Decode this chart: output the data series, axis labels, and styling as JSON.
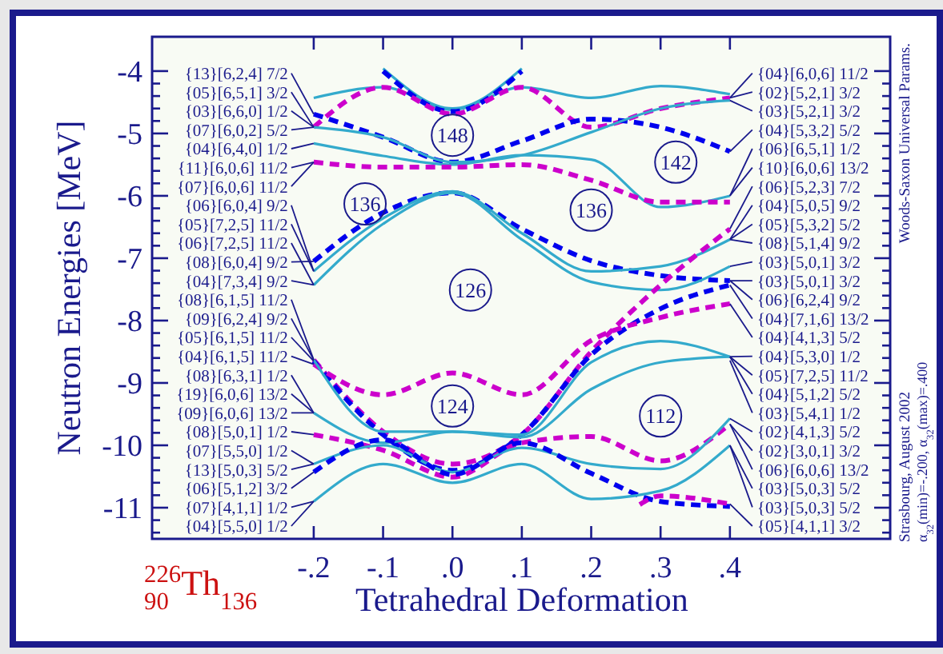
{
  "chart_data": {
    "type": "line",
    "xlabel": "Tetrahedral Deformation",
    "ylabel": "Neutron Energies [MeV]",
    "xlim": [
      -0.433,
      0.631
    ],
    "ylim": [
      -11.5,
      -3.45
    ],
    "xticks": [
      {
        "value": -0.2,
        "label": "-.2"
      },
      {
        "value": -0.1,
        "label": "-.1"
      },
      {
        "value": 0,
        "label": ".0"
      },
      {
        "value": 0.1,
        "label": ".1"
      },
      {
        "value": 0.2,
        "label": ".2"
      },
      {
        "value": 0.3,
        "label": ".3"
      },
      {
        "value": 0.4,
        "label": ".4"
      }
    ],
    "yticks": [
      -4,
      -5,
      -6,
      -7,
      -8,
      -9,
      -10,
      -11,
      {
        "value": -4.2,
        "label": null
      },
      {
        "value": -4.4,
        "label": null
      },
      {
        "value": -4.6,
        "label": null
      },
      {
        "value": -4.8,
        "label": null
      },
      {
        "value": -5.2,
        "label": null
      },
      {
        "value": -5.4,
        "label": null
      },
      {
        "value": -5.6,
        "label": null
      },
      {
        "value": -5.8,
        "label": null
      },
      {
        "value": -6.2,
        "label": null
      },
      {
        "value": -6.4,
        "label": null
      },
      {
        "value": -6.6,
        "label": null
      },
      {
        "value": -6.8,
        "label": null
      },
      {
        "value": -7.2,
        "label": null
      },
      {
        "value": -7.4,
        "label": null
      },
      {
        "value": -7.6,
        "label": null
      },
      {
        "value": -7.8,
        "label": null
      },
      {
        "value": -8.2,
        "label": null
      },
      {
        "value": -8.4,
        "label": null
      },
      {
        "value": -8.6,
        "label": null
      },
      {
        "value": -8.8,
        "label": null
      },
      {
        "value": -9.2,
        "label": null
      },
      {
        "value": -9.4,
        "label": null
      },
      {
        "value": -9.6,
        "label": null
      },
      {
        "value": -9.8,
        "label": null
      },
      {
        "value": -10.2,
        "label": null
      },
      {
        "value": -10.4,
        "label": null
      },
      {
        "value": -10.6,
        "label": null
      },
      {
        "value": -10.8,
        "label": null
      },
      {
        "value": -11.2,
        "label": null
      },
      {
        "value": -11.4,
        "label": null
      }
    ],
    "x": [
      -0.2,
      -0.1,
      0,
      0.1,
      0.2,
      0.3,
      0.4
    ],
    "series": [
      {
        "color": "#33aacc",
        "line_style": "solid",
        "values": [
          -4.43,
          -4.26,
          -4.62,
          -4.26,
          -4.43,
          -4.24,
          -4.37
        ]
      },
      {
        "color": "#33aacc",
        "line_style": "solid",
        "x": [
          -0.1,
          0,
          0.1
        ],
        "values": [
          -3.96,
          -4.6,
          -3.96
        ]
      },
      {
        "color": "#0000ee",
        "line_style": "dashed",
        "x": [
          -0.1,
          0,
          0.1
        ],
        "values": [
          -4.0,
          -4.65,
          -4.0
        ]
      },
      {
        "color": "#cc00cc",
        "line_style": "dashed",
        "values": [
          -4.9,
          -4.26,
          -4.69,
          -4.26,
          -4.9,
          -4.6,
          -4.43
        ]
      },
      {
        "color": "#0000ee",
        "line_style": "dashed",
        "values": [
          -4.69,
          -5.06,
          -5.46,
          -5.12,
          -4.77,
          -4.9,
          -5.29
        ]
      },
      {
        "color": "#33aacc",
        "line_style": "solid",
        "values": [
          -4.9,
          -5.06,
          -5.46,
          -5.35,
          -4.98,
          -4.6,
          -4.47
        ]
      },
      {
        "color": "#33aacc",
        "line_style": "solid",
        "values": [
          -5.16,
          -5.36,
          -5.5,
          -5.35,
          -5.42,
          -6.18,
          -6.0
        ]
      },
      {
        "color": "#cc00cc",
        "line_style": "dashed",
        "values": [
          -5.46,
          -5.54,
          -5.54,
          -5.5,
          -5.75,
          -6.1,
          -6.1
        ]
      },
      {
        "color": "#0000ee",
        "line_style": "dashed",
        "values": [
          -7.05,
          -6.27,
          -5.95,
          -6.53,
          -7.04,
          -7.28,
          -7.36
        ]
      },
      {
        "color": "#33aacc",
        "line_style": "solid",
        "values": [
          -7.21,
          -6.36,
          -5.93,
          -6.6,
          -7.21,
          -7.13,
          -6.7
        ]
      },
      {
        "color": "#33aacc",
        "line_style": "solid",
        "values": [
          -7.43,
          -6.45,
          -5.95,
          -6.7,
          -7.38,
          -7.51,
          -7.13
        ]
      },
      {
        "color": "#cc00cc",
        "line_style": "dashed",
        "values": [
          -8.63,
          -9.78,
          -10.3,
          -9.83,
          -8.5,
          -7.43,
          -6.53
        ]
      },
      {
        "color": "#0000ee",
        "line_style": "dashed",
        "values": [
          -8.65,
          -9.83,
          -10.4,
          -9.83,
          -8.55,
          -7.81,
          -7.43
        ]
      },
      {
        "color": "#cc00cc",
        "line_style": "dashed",
        "values": [
          -8.7,
          -9.19,
          -8.84,
          -9.19,
          -8.32,
          -7.95,
          -7.73
        ]
      },
      {
        "color": "#33aacc",
        "line_style": "solid",
        "values": [
          -8.63,
          -9.78,
          -9.78,
          -9.83,
          -8.67,
          -8.33,
          -8.58
        ]
      },
      {
        "color": "#33aacc",
        "line_style": "solid",
        "values": [
          -9.48,
          -9.96,
          -9.78,
          -9.87,
          -9.1,
          -8.67,
          -8.58
        ]
      },
      {
        "color": "#cc00cc",
        "line_style": "dashed",
        "values": [
          -9.83,
          -10.08,
          -10.51,
          -9.96,
          -9.86,
          -10.25,
          -9.66
        ]
      },
      {
        "color": "#33aacc",
        "line_style": "solid",
        "values": [
          -10.3,
          -10.0,
          -10.43,
          -10.04,
          -10.3,
          -10.38,
          -9.57
        ]
      },
      {
        "color": "#0000ee",
        "line_style": "dashed",
        "values": [
          -10.43,
          -9.91,
          -10.47,
          -9.96,
          -10.45,
          -10.9,
          -10.98
        ]
      },
      {
        "color": "#33aacc",
        "line_style": "solid",
        "values": [
          -10.9,
          -10.3,
          -10.6,
          -10.3,
          -10.86,
          -10.73,
          -10.0
        ]
      },
      {
        "color": "#cc00cc",
        "line_style": "dashed",
        "x": [
          0.27,
          0.3,
          0.4
        ],
        "values": [
          -10.95,
          -10.81,
          -10.94
        ]
      }
    ],
    "annotations": [
      "$^{226}$$_{90}$Th$_{136}$",
      "Woods-Saxon Universal Params.",
      "Strasbourg, August 2002",
      "α$_{32}$(min)=-.200, α$_{32}$(max)=.400",
      {
        "text": "148",
        "x": 0,
        "y": -5.03
      },
      {
        "text": "142",
        "x": 0.322,
        "y": -5.46
      },
      {
        "text": "136",
        "x": -0.126,
        "y": -6.13
      },
      {
        "text": "136",
        "x": 0.2,
        "y": -6.23
      },
      {
        "text": "126",
        "x": 0.026,
        "y": -7.51
      },
      {
        "text": "124",
        "x": 0,
        "y": -9.37
      },
      {
        "text": "112",
        "x": 0.3,
        "y": -9.53
      },
      {
        "text": "{13}[6,2,4] 7/2",
        "x": -0.2,
        "y": -4.69
      },
      {
        "text": "{05}[6,5,1] 3/2",
        "x": -0.2,
        "y": -4.9
      },
      {
        "text": "{03}[6,6,0] 1/2",
        "x": -0.2,
        "y": -4.9
      },
      {
        "text": "{07}[6,0,2] 5/2",
        "x": -0.2,
        "y": -4.9
      },
      {
        "text": "{04}[6,4,0] 1/2",
        "x": -0.2,
        "y": -5.16
      },
      {
        "text": "{11}[6,0,6] 11/2",
        "x": -0.2,
        "y": -5.46
      },
      {
        "text": "{07}[6,0,6] 11/2",
        "x": -0.2,
        "y": -5.46
      },
      {
        "text": "{06}[6,0,4] 9/2",
        "x": -0.2,
        "y": -7.21
      },
      {
        "text": "{05}[7,2,5] 11/2",
        "x": -0.2,
        "y": -7.21
      },
      {
        "text": "{06}[7,2,5] 11/2",
        "x": -0.2,
        "y": -7.43
      },
      {
        "text": "{08}[6,0,4] 9/2",
        "x": -0.2,
        "y": -7.05
      },
      {
        "text": "{04}[7,3,4] 9/2",
        "x": -0.2,
        "y": -7.43
      },
      {
        "text": "{08}[6,1,5] 11/2",
        "x": -0.2,
        "y": -8.63
      },
      {
        "text": "{09}[6,2,4] 9/2",
        "x": -0.2,
        "y": -8.63
      },
      {
        "text": "{05}[6,1,5] 11/2",
        "x": -0.2,
        "y": -8.65
      },
      {
        "text": "{04}[6,1,5] 11/2",
        "x": -0.2,
        "y": -8.7
      },
      {
        "text": "{08}[6,3,1] 1/2",
        "x": -0.2,
        "y": -9.48
      },
      {
        "text": "{19}[6,0,6] 13/2",
        "x": -0.2,
        "y": -9.48
      },
      {
        "text": "{09}[6,0,6] 13/2",
        "x": -0.2,
        "y": -9.48
      },
      {
        "text": "{08}[5,0,1] 1/2",
        "x": -0.2,
        "y": -9.83
      },
      {
        "text": "{07}[5,5,0] 1/2",
        "x": -0.2,
        "y": -10.3
      },
      {
        "text": "{13}[5,0,3] 5/2",
        "x": -0.2,
        "y": -10.3
      },
      {
        "text": "{06}[5,1,2] 3/2",
        "x": -0.2,
        "y": -10.43
      },
      {
        "text": "{07}[4,1,1] 1/2",
        "x": -0.2,
        "y": -10.9
      },
      {
        "text": "{04}[5,5,0] 1/2",
        "x": -0.2,
        "y": -10.9
      },
      {
        "text": "{04}[6,0,6] 11/2",
        "x": 0.4,
        "y": -4.43
      },
      {
        "text": "{02}[5,2,1] 3/2",
        "x": 0.4,
        "y": -4.43
      },
      {
        "text": "{03}[5,2,1] 3/2",
        "x": 0.4,
        "y": -4.47
      },
      {
        "text": "{04}[5,3,2] 5/2",
        "x": 0.4,
        "y": -5.29
      },
      {
        "text": "{06}[6,5,1] 1/2",
        "x": 0.4,
        "y": -6.0
      },
      {
        "text": "{10}[6,0,6] 13/2",
        "x": 0.4,
        "y": -6.0
      },
      {
        "text": "{06}[5,2,3] 7/2",
        "x": 0.4,
        "y": -6.53
      },
      {
        "text": "{04}[5,0,5] 9/2",
        "x": 0.4,
        "y": -6.7
      },
      {
        "text": "{05}[5,3,2] 5/2",
        "x": 0.4,
        "y": -6.7
      },
      {
        "text": "{08}[5,1,4] 9/2",
        "x": 0.4,
        "y": -6.7
      },
      {
        "text": "{03}[5,0,1] 3/2",
        "x": 0.4,
        "y": -7.13
      },
      {
        "text": "{03}[5,0,1] 3/2",
        "x": 0.4,
        "y": -7.36
      },
      {
        "text": "{06}[6,2,4] 9/2",
        "x": 0.4,
        "y": -7.36
      },
      {
        "text": "{04}[7,1,6] 13/2",
        "x": 0.4,
        "y": -7.43
      },
      {
        "text": "{04}[4,1,3] 5/2",
        "x": 0.4,
        "y": -7.73
      },
      {
        "text": "{04}[5,3,0] 1/2",
        "x": 0.4,
        "y": -8.58
      },
      {
        "text": "{05}[7,2,5] 11/2",
        "x": 0.4,
        "y": -8.58
      },
      {
        "text": "{04}[5,1,2] 5/2",
        "x": 0.4,
        "y": -8.58
      },
      {
        "text": "{03}[5,4,1] 1/2",
        "x": 0.4,
        "y": -8.64
      },
      {
        "text": "{02}[4,1,3] 5/2",
        "x": 0.4,
        "y": -9.57
      },
      {
        "text": "{02}[3,0,1] 3/2",
        "x": 0.4,
        "y": -9.66
      },
      {
        "text": "{06}[6,0,6] 13/2",
        "x": 0.4,
        "y": -9.66
      },
      {
        "text": "{03}[5,0,3] 5/2",
        "x": 0.4,
        "y": -10.0
      },
      {
        "text": "{03}[5,0,3] 5/2",
        "x": 0.4,
        "y": -10.0
      },
      {
        "text": "{05}[4,1,1] 3/2",
        "x": 0.4,
        "y": -10.94
      }
    ]
  }
}
